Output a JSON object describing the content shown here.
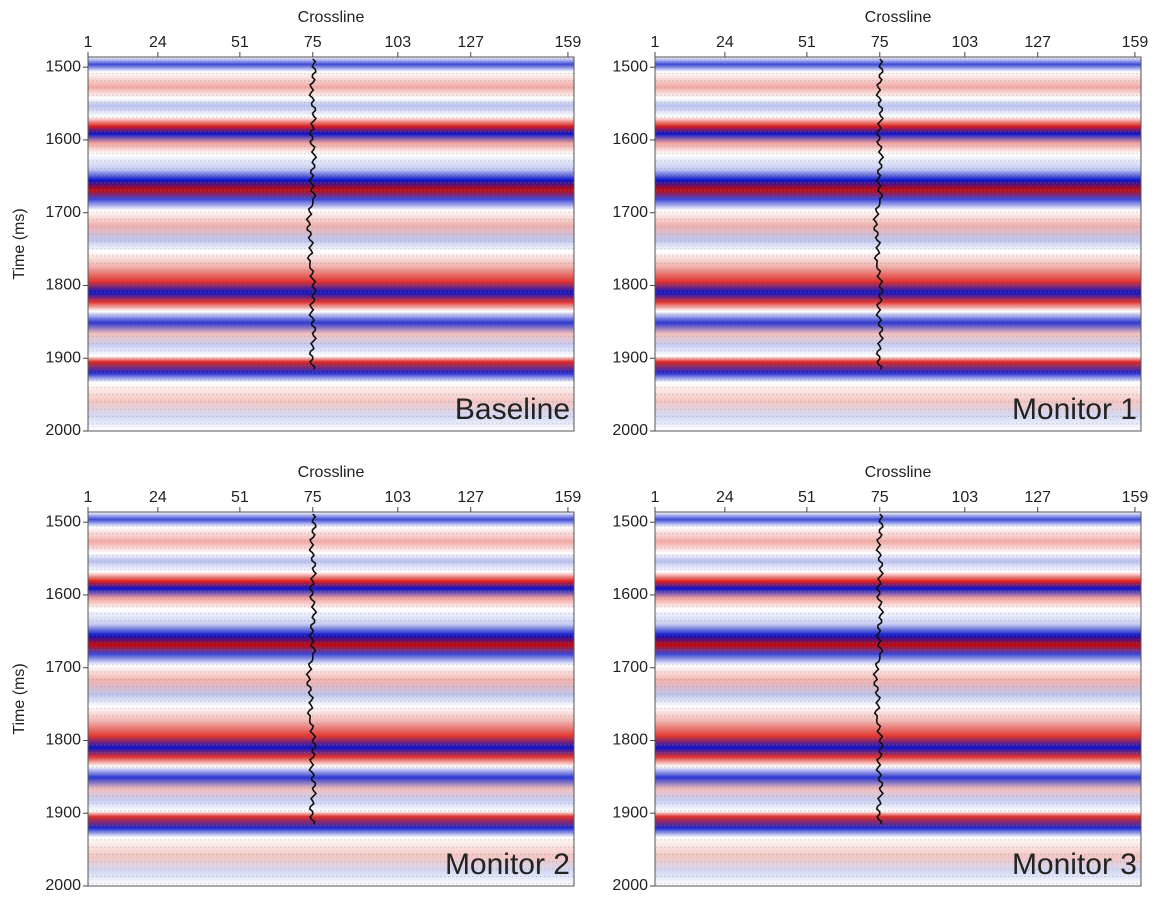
{
  "chart_data": [
    {
      "type": "seismic",
      "xlabel": "Crossline",
      "ylabel": "Time (ms)",
      "label": "Baseline",
      "xlim": [
        1,
        161
      ],
      "xticks": [
        1,
        24,
        51,
        75,
        103,
        127,
        159
      ],
      "ylim": [
        1486,
        2000
      ],
      "yticks": [
        1500,
        1600,
        1700,
        1800,
        1900,
        2000
      ],
      "well_crossline": 75
    },
    {
      "type": "seismic",
      "xlabel": "Crossline",
      "label": "Monitor 1",
      "xlim": [
        1,
        161
      ],
      "xticks": [
        1,
        24,
        51,
        75,
        103,
        127,
        159
      ],
      "ylim": [
        1486,
        2000
      ],
      "yticks": [
        1500,
        1600,
        1700,
        1800,
        1900,
        2000
      ],
      "well_crossline": 75
    },
    {
      "type": "seismic",
      "xlabel": "Crossline",
      "ylabel": "Time (ms)",
      "label": "Monitor 2",
      "xlim": [
        1,
        161
      ],
      "xticks": [
        1,
        24,
        51,
        75,
        103,
        127,
        159
      ],
      "ylim": [
        1486,
        2000
      ],
      "yticks": [
        1500,
        1600,
        1700,
        1800,
        1900,
        2000
      ],
      "well_crossline": 75
    },
    {
      "type": "seismic",
      "xlabel": "Crossline",
      "label": "Monitor 3",
      "xlim": [
        1,
        161
      ],
      "xticks": [
        1,
        24,
        51,
        75,
        103,
        127,
        159
      ],
      "ylim": [
        1486,
        2000
      ],
      "yticks": [
        1500,
        1600,
        1700,
        1800,
        1900,
        2000
      ],
      "well_crossline": 75
    }
  ]
}
